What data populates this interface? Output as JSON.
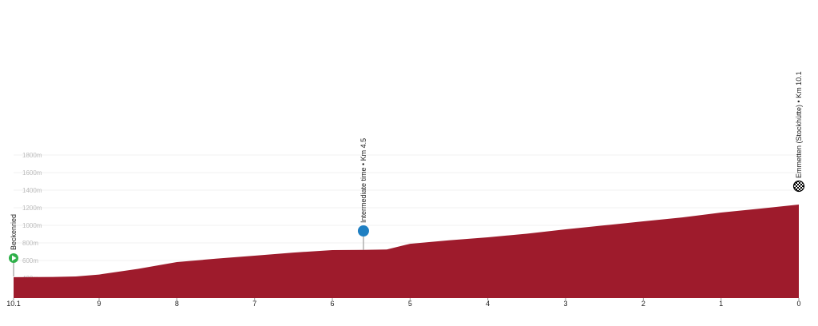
{
  "chart_data": {
    "type": "area",
    "x": [
      10.1,
      9.6,
      9.3,
      9,
      8.5,
      8,
      7.5,
      7,
      6.5,
      6,
      5.6,
      5.3,
      5,
      4.5,
      4,
      3.5,
      3,
      2.5,
      2,
      1.5,
      1,
      0.5,
      0
    ],
    "values": [
      410,
      412,
      418,
      440,
      505,
      582,
      620,
      655,
      690,
      718,
      720,
      725,
      790,
      830,
      864,
      905,
      955,
      1000,
      1045,
      1090,
      1145,
      1190,
      1236
    ],
    "color": "#9e1b2c",
    "xlim": [
      10.1,
      0
    ],
    "xticks": [
      10.1,
      9,
      8,
      7,
      6,
      5,
      4,
      3,
      2,
      1,
      0
    ],
    "ylim": [
      200,
      1800
    ],
    "yticks": [
      {
        "value": 400,
        "label": "400m"
      },
      {
        "value": 600,
        "label": "600m"
      },
      {
        "value": 800,
        "label": "800m"
      },
      {
        "value": 1000,
        "label": "1000m"
      },
      {
        "value": 1200,
        "label": "1200m"
      },
      {
        "value": 1400,
        "label": "1400m"
      },
      {
        "value": 1600,
        "label": "1600m"
      },
      {
        "value": 1800,
        "label": "1800m"
      }
    ],
    "grid": true,
    "annotations": [
      {
        "label": "Beckenried",
        "x": 10.1,
        "icon": "start"
      },
      {
        "label": "Intermediate time • Km 4.5",
        "x": 5.6,
        "icon": "split"
      },
      {
        "label": "Emmetten (Stockhütte) • Km 10.1",
        "x": 0,
        "icon": "finish"
      }
    ]
  }
}
